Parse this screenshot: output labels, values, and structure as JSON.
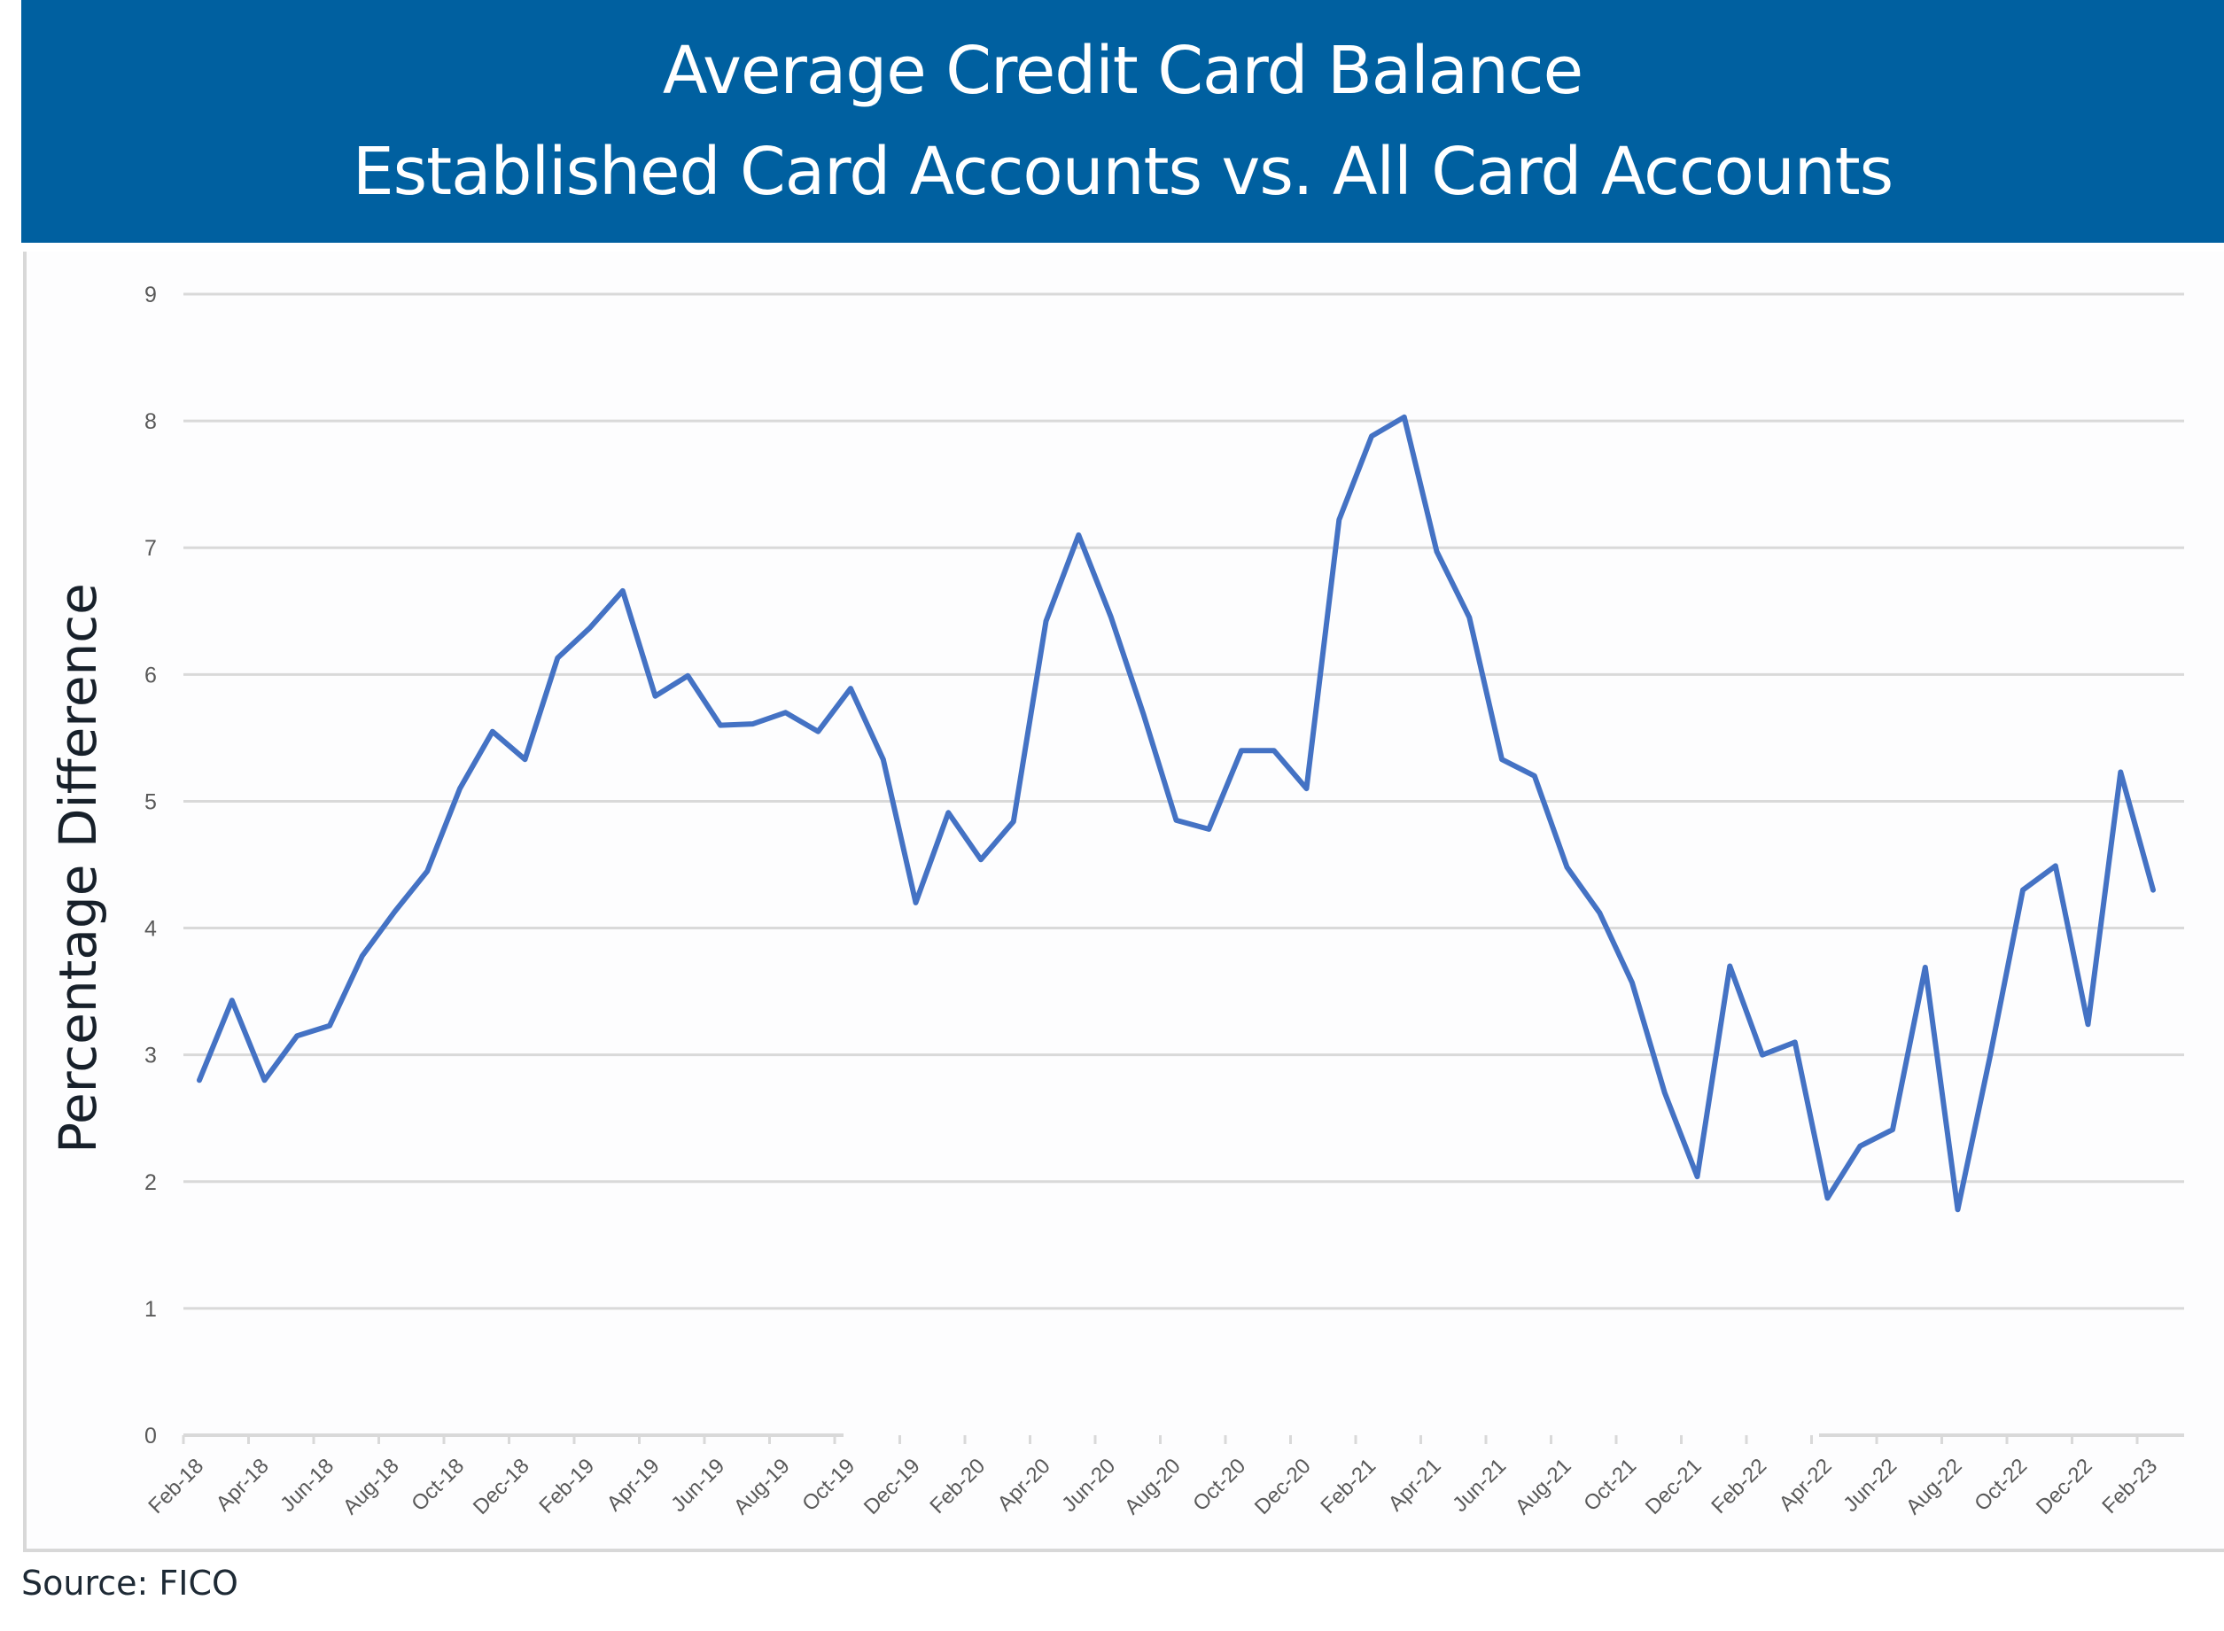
{
  "header": {
    "title_line1": "Average Credit Card Balance",
    "title_line2": "Established Card Accounts vs. All Card Accounts",
    "background_color": "#0060a0"
  },
  "footer": {
    "source": "Source: FICO"
  },
  "chart_data": {
    "type": "line",
    "title": "Average Credit Card Balance — Established Card Accounts vs. All Card Accounts",
    "xlabel": "",
    "ylabel": "Percentage Difference",
    "ylim": [
      0,
      9
    ],
    "yticks": [
      0,
      1,
      2,
      3,
      4,
      5,
      6,
      7,
      8,
      9
    ],
    "grid": true,
    "legend": null,
    "line_color": "#4472c4",
    "x_tick_labels": [
      "Feb-18",
      "Apr-18",
      "Jun-18",
      "Aug-18",
      "Oct-18",
      "Dec-18",
      "Feb-19",
      "Apr-19",
      "Jun-19",
      "Aug-19",
      "Oct-19",
      "Dec-19",
      "Feb-20",
      "Apr-20",
      "Jun-20",
      "Aug-20",
      "Oct-20",
      "Dec-20",
      "Feb-21",
      "Apr-21",
      "Jun-21",
      "Aug-21",
      "Oct-21",
      "Dec-21",
      "Feb-22",
      "Apr-22",
      "Jun-22",
      "Aug-22",
      "Oct-22",
      "Dec-22",
      "Feb-23"
    ],
    "x": [
      "Feb-18",
      "Mar-18",
      "Apr-18",
      "May-18",
      "Jun-18",
      "Jul-18",
      "Aug-18",
      "Sep-18",
      "Oct-18",
      "Nov-18",
      "Dec-18",
      "Jan-19",
      "Feb-19",
      "Mar-19",
      "Apr-19",
      "May-19",
      "Jun-19",
      "Jul-19",
      "Aug-19",
      "Sep-19",
      "Oct-19",
      "Nov-19",
      "Dec-19",
      "Jan-20",
      "Feb-20",
      "Mar-20",
      "Apr-20",
      "May-20",
      "Jun-20",
      "Jul-20",
      "Aug-20",
      "Sep-20",
      "Oct-20",
      "Nov-20",
      "Dec-20",
      "Jan-21",
      "Feb-21",
      "Mar-21",
      "Apr-21",
      "May-21",
      "Jun-21",
      "Jul-21",
      "Aug-21",
      "Sep-21",
      "Oct-21",
      "Nov-21",
      "Dec-21",
      "Jan-22",
      "Feb-22",
      "Mar-22",
      "Apr-22",
      "May-22",
      "Jun-22",
      "Jul-22",
      "Aug-22",
      "Sep-22",
      "Oct-22",
      "Nov-22",
      "Dec-22",
      "Jan-23",
      "Feb-23"
    ],
    "series": [
      {
        "name": "Percentage Difference",
        "values": [
          2.8,
          3.43,
          2.8,
          3.15,
          3.23,
          3.78,
          4.13,
          4.45,
          5.1,
          5.55,
          5.33,
          6.13,
          6.37,
          6.66,
          5.83,
          5.99,
          5.6,
          5.61,
          5.7,
          5.55,
          5.89,
          5.33,
          4.2,
          4.91,
          4.54,
          4.84,
          6.42,
          7.1,
          6.45,
          5.68,
          4.85,
          4.78,
          5.4,
          5.4,
          5.1,
          7.22,
          7.88,
          8.03,
          6.97,
          6.45,
          5.33,
          5.2,
          4.48,
          4.12,
          3.57,
          2.7,
          2.04,
          3.7,
          3.0,
          3.1,
          1.87,
          2.28,
          2.41,
          3.69,
          1.78,
          3.0,
          4.3,
          4.49,
          3.24,
          5.23,
          4.3
        ]
      }
    ]
  }
}
